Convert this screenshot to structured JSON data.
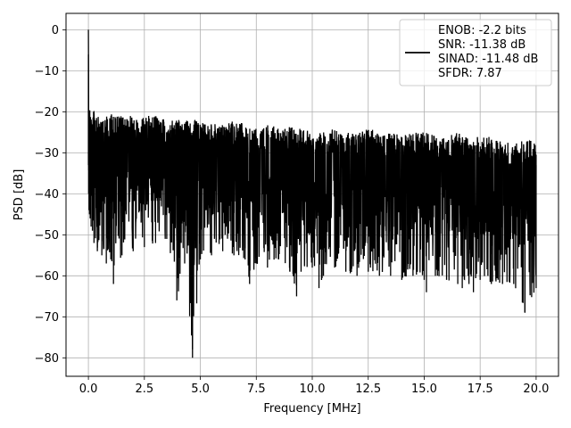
{
  "chart_data": {
    "type": "line",
    "title": "",
    "xlabel": "Frequency [MHz]",
    "ylabel": "PSD [dB]",
    "xlim": [
      -1.0,
      21.0
    ],
    "ylim": [
      -84.5,
      4.0
    ],
    "grid": true,
    "legend_position": "top-right",
    "x_ticks": [
      0.0,
      2.5,
      5.0,
      7.5,
      10.0,
      12.5,
      15.0,
      17.5,
      20.0
    ],
    "x_tick_labels": [
      "0.0",
      "2.5",
      "5.0",
      "7.5",
      "10.0",
      "12.5",
      "15.0",
      "17.5",
      "20.0"
    ],
    "y_ticks": [
      0,
      -10,
      -20,
      -30,
      -40,
      -50,
      -60,
      -70,
      -80
    ],
    "y_tick_labels": [
      "0",
      "−10",
      "−20",
      "−30",
      "−40",
      "−50",
      "−60",
      "−70",
      "−80"
    ],
    "legend_lines": [
      "ENOB: -2.2 bits",
      "SNR: -11.38 dB",
      "SINAD: -11.48 dB",
      "SFDR: 7.87"
    ],
    "line_color": "#000000",
    "series": [
      {
        "x": [
          0.0,
          0.01,
          0.03,
          0.05,
          0.08,
          0.12,
          0.18,
          0.25,
          0.4,
          0.6,
          0.8,
          1.0,
          1.12,
          1.5,
          2.0,
          2.5,
          3.0,
          3.5,
          3.95,
          4.3,
          4.65,
          5.0,
          5.5,
          6.0,
          6.5,
          7.0,
          7.2,
          7.5,
          8.0,
          8.5,
          9.0,
          9.3,
          9.5,
          10.0,
          10.3,
          10.5,
          11.0,
          11.5,
          12.0,
          12.5,
          13.0,
          13.5,
          14.0,
          14.5,
          15.0,
          15.1,
          15.5,
          16.0,
          16.5,
          16.7,
          17.0,
          17.2,
          17.5,
          18.0,
          18.5,
          19.0,
          19.5,
          20.0
        ],
        "peak": [
          0,
          -10,
          -15,
          -18,
          -19,
          -21,
          -20,
          -18,
          -21,
          -22,
          -21,
          -20,
          -21,
          -21,
          -21,
          -21,
          -21,
          -22,
          -22,
          -22,
          -22,
          -22,
          -23,
          -23,
          -22,
          -23,
          -24,
          -24,
          -23,
          -24,
          -23,
          -24,
          -24,
          -24,
          -25,
          -25,
          -24,
          -25,
          -25,
          -24,
          -25,
          -25,
          -25,
          -25,
          -25,
          -25,
          -26,
          -26,
          -25,
          -26,
          -26,
          -26,
          -26,
          -26,
          -27,
          -27,
          -27,
          -27
        ],
        "trough": [
          -33,
          -40,
          -44,
          -45,
          -46,
          -48,
          -49,
          -52,
          -54,
          -55,
          -57,
          -56,
          -62,
          -55,
          -54,
          -53,
          -52,
          -51,
          -66,
          -57,
          -80,
          -56,
          -55,
          -54,
          -55,
          -56,
          -62,
          -57,
          -58,
          -56,
          -59,
          -65,
          -59,
          -58,
          -63,
          -60,
          -58,
          -59,
          -60,
          -59,
          -60,
          -60,
          -61,
          -60,
          -61,
          -64,
          -60,
          -61,
          -62,
          -63,
          -62,
          -64,
          -61,
          -62,
          -62,
          -62,
          -69,
          -63
        ]
      }
    ]
  }
}
